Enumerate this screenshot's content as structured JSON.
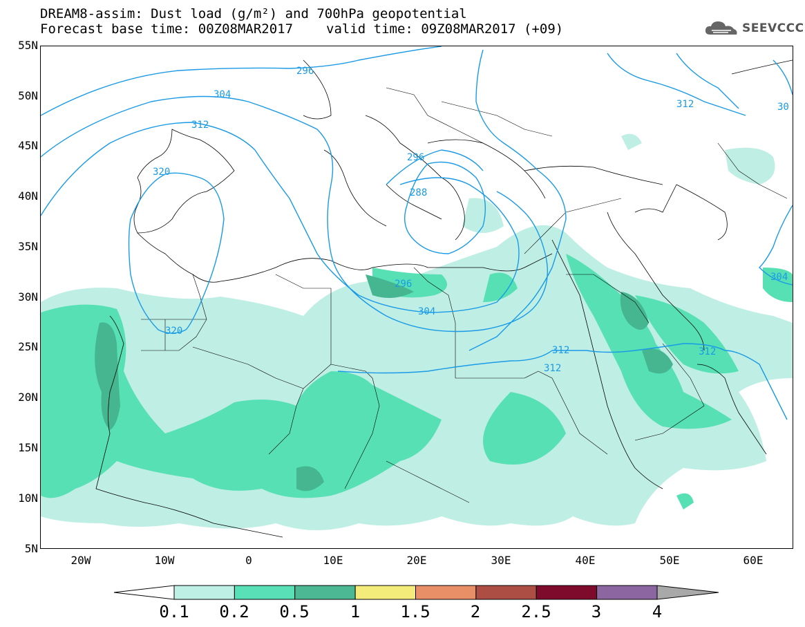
{
  "header": {
    "title_line1": "DREAM8-assim: Dust load (g/m²) and 700hPa geopotential",
    "title_line2_base": "Forecast base time: 00Z08MAR2017",
    "title_line2_valid": "valid time: 09Z08MAR2017 (+09)"
  },
  "logo": {
    "text": "SEEVCCC",
    "icon": "cloud-icon"
  },
  "map": {
    "lat_labels": [
      "55N",
      "50N",
      "45N",
      "40N",
      "35N",
      "30N",
      "25N",
      "20N",
      "15N",
      "10N",
      "5N"
    ],
    "lon_labels": [
      "20W",
      "10W",
      "0",
      "10E",
      "20E",
      "30E",
      "40E",
      "50E",
      "60E"
    ],
    "contour_labels": [
      "296",
      "304",
      "312",
      "320",
      "296",
      "288",
      "296",
      "304",
      "312",
      "312",
      "320",
      "312",
      "304",
      "312",
      "30"
    ],
    "colors": {
      "dust_0_1": "#bfefe4",
      "dust_0_2": "#56e0b4",
      "dust_0_5": "#45b690",
      "contour": "#1a9ae6"
    }
  },
  "colorbar": {
    "labels": [
      "0.1",
      "0.2",
      "0.5",
      "1",
      "1.5",
      "2",
      "2.5",
      "3",
      "4"
    ],
    "colors": [
      "#bff0e6",
      "#59e0b6",
      "#4cb894",
      "#f4ec7a",
      "#e88f68",
      "#ad4e44",
      "#7e0a2c",
      "#8c66a0"
    ],
    "under_color": "#ffffff",
    "over_color": "#a9a9a9"
  }
}
